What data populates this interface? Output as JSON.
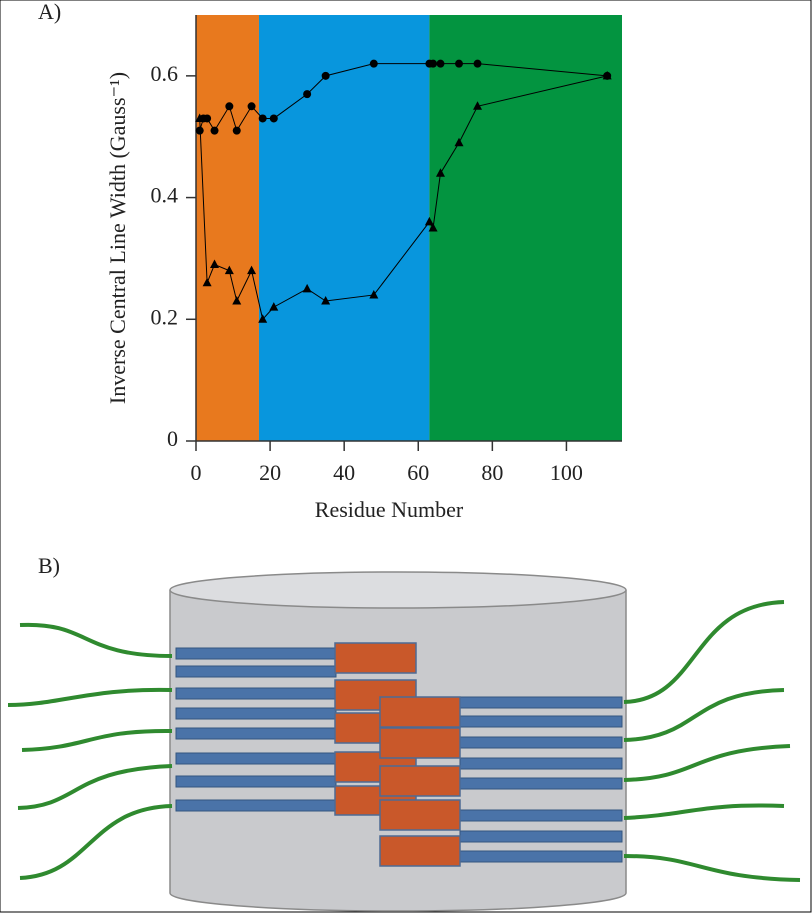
{
  "figure": {
    "panel_labels": [
      "A)",
      "B)"
    ]
  },
  "chart_data": {
    "type": "line",
    "xlabel": "Residue Number",
    "ylabel": "Inverse Central Line Width (Gauss⁻¹)",
    "xlim": [
      0,
      115
    ],
    "xticks": [
      0,
      20,
      40,
      60,
      80,
      100
    ],
    "ylim": [
      0,
      0.7
    ],
    "yticks": [
      0,
      0.2,
      0.4,
      0.6
    ],
    "regions": [
      {
        "from": 0,
        "to": 17,
        "color": "#e8791e"
      },
      {
        "from": 17,
        "to": 63,
        "color": "#0896dd"
      },
      {
        "from": 63,
        "to": 115,
        "color": "#039440"
      }
    ],
    "series": [
      {
        "color": "#000000",
        "marker": "circle",
        "x": [
          1,
          2,
          3,
          5,
          9,
          11,
          15,
          18,
          21,
          30,
          35,
          48,
          63,
          64,
          66,
          71,
          76,
          111
        ],
        "values": [
          0.51,
          0.53,
          0.53,
          0.51,
          0.55,
          0.51,
          0.55,
          0.53,
          0.53,
          0.57,
          0.6,
          0.62,
          0.62,
          0.62,
          0.62,
          0.62,
          0.62,
          0.6
        ]
      },
      {
        "color": "#000000",
        "marker": "triangle",
        "x": [
          1,
          3,
          5,
          9,
          11,
          15,
          18,
          21,
          30,
          35,
          48,
          63,
          64,
          66,
          71,
          76,
          111
        ],
        "values": [
          0.53,
          0.26,
          0.29,
          0.28,
          0.23,
          0.28,
          0.2,
          0.22,
          0.25,
          0.23,
          0.24,
          0.36,
          0.35,
          0.44,
          0.49,
          0.55,
          0.6
        ]
      }
    ]
  }
}
